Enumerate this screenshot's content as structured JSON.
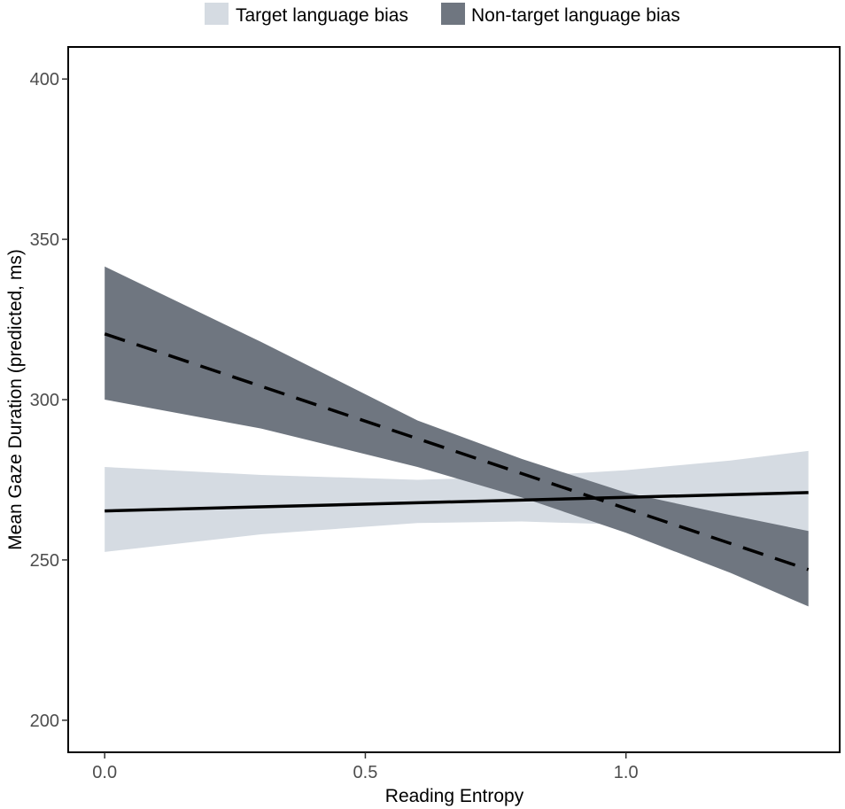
{
  "chart_data": {
    "type": "line",
    "title": "",
    "xlabel": "Reading Entropy",
    "ylabel": "Mean Gaze Duration (predicted, ms)",
    "xlim": [
      -0.07,
      1.41
    ],
    "ylim": [
      190,
      410
    ],
    "x_ticks": [
      0.0,
      0.5,
      1.0
    ],
    "x_tick_labels": [
      "0.0",
      "0.5",
      "1.0"
    ],
    "y_ticks": [
      200,
      250,
      300,
      350,
      400
    ],
    "y_tick_labels": [
      "200",
      "250",
      "300",
      "350",
      "400"
    ],
    "grid": false,
    "legend_position": "top",
    "series": [
      {
        "name": "Target language bias",
        "line_style": "solid",
        "line_color": "#000000",
        "band_color": "#d5dbe2",
        "x": [
          0.0,
          1.35
        ],
        "y": [
          265.3,
          271.0
        ],
        "band_x": [
          0.0,
          0.3,
          0.6,
          0.8,
          1.0,
          1.2,
          1.35
        ],
        "band_lower": [
          252.5,
          258.0,
          261.5,
          262.0,
          261.0,
          259.5,
          258.0
        ],
        "band_upper": [
          279.0,
          276.5,
          275.0,
          276.0,
          278.0,
          281.0,
          284.0
        ]
      },
      {
        "name": "Non-target language bias",
        "line_style": "dashed",
        "line_color": "#000000",
        "band_color": "#6f7680",
        "x": [
          0.0,
          1.35
        ],
        "y": [
          320.5,
          247.0
        ],
        "band_x": [
          0.0,
          0.3,
          0.6,
          0.8,
          1.0,
          1.2,
          1.35
        ],
        "band_lower": [
          300.0,
          291.0,
          279.0,
          269.5,
          258.5,
          246.0,
          235.5
        ],
        "band_upper": [
          341.5,
          318.0,
          293.5,
          281.5,
          271.0,
          264.0,
          259.0
        ]
      }
    ]
  }
}
